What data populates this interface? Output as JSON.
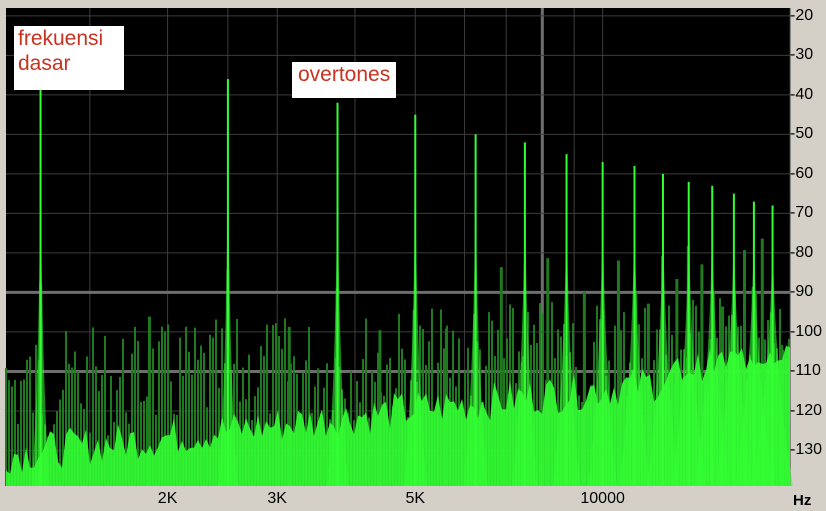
{
  "annotations": {
    "fundamental": "frekuensi\ndasar",
    "overtones": "overtones"
  },
  "chart_data": {
    "type": "area",
    "xlabel": "Hz",
    "x_scale": "log",
    "xlim": [
      1100,
      20000
    ],
    "ylim": [
      -139,
      -18
    ],
    "grid": true,
    "x_ticks": [
      {
        "value": 2000,
        "label": "2K"
      },
      {
        "value": 3000,
        "label": "3K"
      },
      {
        "value": 5000,
        "label": "5K"
      },
      {
        "value": 10000,
        "label": "10000"
      }
    ],
    "y_ticks": [
      {
        "value": -20,
        "label": "-20"
      },
      {
        "value": -30,
        "label": "-30"
      },
      {
        "value": -40,
        "label": "-40"
      },
      {
        "value": -50,
        "label": "-50"
      },
      {
        "value": -60,
        "label": "-60"
      },
      {
        "value": -70,
        "label": "-70"
      },
      {
        "value": -80,
        "label": "-80"
      },
      {
        "value": -90,
        "label": "-90"
      },
      {
        "value": -100,
        "label": "-100"
      },
      {
        "value": -110,
        "label": "-110"
      },
      {
        "value": -120,
        "label": "-120"
      },
      {
        "value": -130,
        "label": "-130"
      }
    ],
    "fundamental_hz": 1250,
    "harmonics": [
      {
        "hz": 1250,
        "db": -38
      },
      {
        "hz": 2500,
        "db": -36
      },
      {
        "hz": 3750,
        "db": -42
      },
      {
        "hz": 5000,
        "db": -45
      },
      {
        "hz": 6250,
        "db": -50
      },
      {
        "hz": 7500,
        "db": -52
      },
      {
        "hz": 8750,
        "db": -55
      },
      {
        "hz": 10000,
        "db": -57
      },
      {
        "hz": 11250,
        "db": -58
      },
      {
        "hz": 12500,
        "db": -60
      },
      {
        "hz": 13750,
        "db": -62
      },
      {
        "hz": 15000,
        "db": -63
      },
      {
        "hz": 16250,
        "db": -65
      },
      {
        "hz": 17500,
        "db": -67
      },
      {
        "hz": 18750,
        "db": -68
      }
    ],
    "colors": {
      "background": "#000000",
      "grid": "#3c3c3c",
      "highlight_grid": "#6e6e6e",
      "spectrum_bright": "#33ff33",
      "spectrum_dark": "#1f7a1f",
      "axis_panel": "#d4d0c8"
    }
  }
}
